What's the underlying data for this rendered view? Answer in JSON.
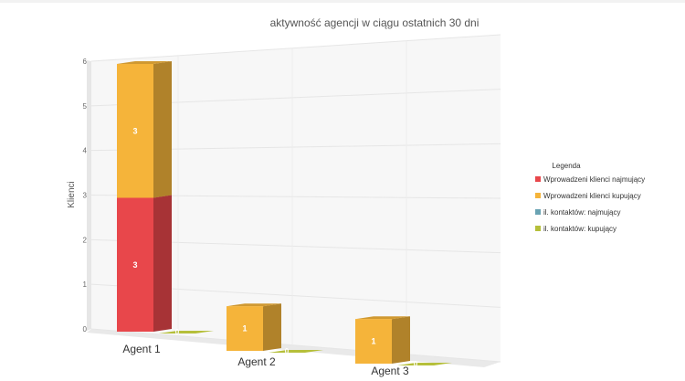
{
  "chart_data": {
    "type": "bar",
    "stacked": true,
    "three_d": true,
    "title": "aktywność agencji w ciągu ostatnich 30 dni",
    "ylabel": "Klienci",
    "xlabel": "",
    "ylim": [
      0,
      6
    ],
    "yticks": [
      "0",
      "1",
      "2",
      "3",
      "4",
      "5",
      "6"
    ],
    "categories": [
      "Agent 1",
      "Agent 2",
      "Agent 3"
    ],
    "series": [
      {
        "name": "Wprowadzeni klienci najmujący",
        "stack": "wprowadzeni",
        "color": "#e8474b",
        "values": [
          3,
          0,
          0
        ]
      },
      {
        "name": "Wprowadzeni klienci kupujący",
        "stack": "wprowadzeni",
        "color": "#f5b43a",
        "values": [
          3,
          1,
          1
        ]
      },
      {
        "name": "il. kontaktów: najmujący",
        "stack": "kontakty",
        "color": "#6aa3b3",
        "values": [
          0,
          0,
          0
        ]
      },
      {
        "name": "il. kontaktów: kupujący",
        "stack": "kontakty",
        "color": "#b5bf3a",
        "values": [
          0,
          0,
          0
        ]
      }
    ],
    "grid": true,
    "legend": {
      "title": "Legenda",
      "position": "right"
    }
  }
}
